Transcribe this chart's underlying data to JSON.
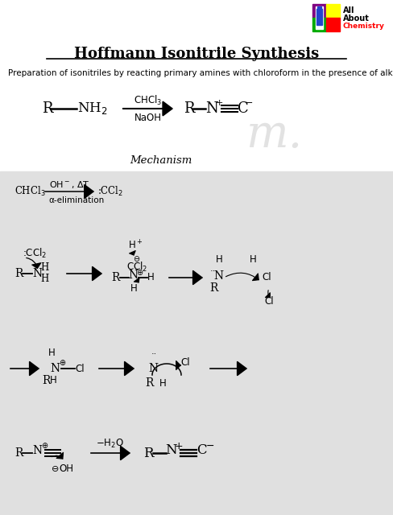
{
  "title": "Hoffmann Isonitrile Synthesis",
  "subtitle": "Preparation of isonitriles by reacting primary amines with chloroform in the presence of alkali",
  "bg_color": "#ffffff",
  "mech_bg": "#e0e0e0",
  "watermark": "m.",
  "watermark_color": "#d0d0d0"
}
